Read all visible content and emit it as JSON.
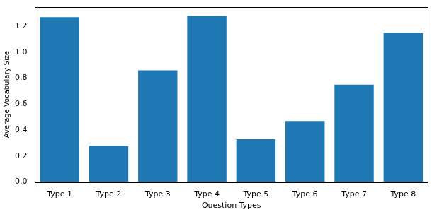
{
  "chart_data": {
    "type": "bar",
    "x_label": "Question Types",
    "y_label": "Average Vocabulary Size",
    "categories": [
      "Type 1",
      "Type 2",
      "Type 3",
      "Type 4",
      "Type 5",
      "Type 6",
      "Type 7",
      "Type 8"
    ],
    "values": [
      1.27,
      0.28,
      0.86,
      1.28,
      0.33,
      0.47,
      0.75,
      1.15
    ],
    "color": "#1f77b4",
    "ylim": [
      0,
      1.35
    ],
    "yticks": [
      {
        "value": 0,
        "label": "0.0"
      },
      0.2,
      0.4,
      0.6,
      0.8,
      {
        "value": 1,
        "label": "1.0"
      },
      1.2
    ],
    "grid": false
  }
}
